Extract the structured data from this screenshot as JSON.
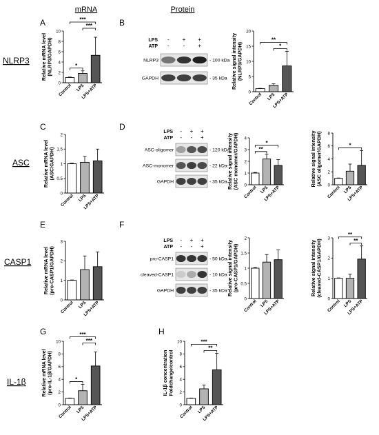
{
  "column_headers": {
    "mrna": "mRNA",
    "protein": "Protein"
  },
  "row_labels": {
    "nlrp3": "NLRP3",
    "asc": "ASC",
    "casp1": "CASP1",
    "il1b": "IL-1β"
  },
  "panel_letters": {
    "A": "A",
    "B": "B",
    "C": "C",
    "D": "D",
    "E": "E",
    "F": "F",
    "G": "G",
    "H": "H"
  },
  "colors": {
    "control": "#ffffff",
    "lps": "#b3b3b3",
    "lps_atp": "#555555",
    "axis": "#000000"
  },
  "blot_B": {
    "treatments": [
      {
        "name": "LPS",
        "signs": [
          "-",
          "+",
          "+"
        ]
      },
      {
        "name": "ATP",
        "signs": [
          "-",
          "-",
          "+"
        ]
      }
    ],
    "bands": [
      {
        "name": "NLRP3",
        "size": "- 100 kDa",
        "intensity": [
          0.55,
          0.85,
          0.95
        ]
      },
      {
        "name": "GAPDH",
        "size": "- 35 kDa",
        "intensity": [
          0.8,
          0.8,
          0.8
        ]
      }
    ]
  },
  "blot_D": {
    "treatments": [
      {
        "name": "LPS",
        "signs": [
          "-",
          "+",
          "+"
        ]
      },
      {
        "name": "ATP",
        "signs": [
          "-",
          "-",
          "+"
        ]
      }
    ],
    "bands": [
      {
        "name": "ASC-oligomer",
        "size": "- 120 kDa",
        "intensity": [
          0.35,
          0.7,
          0.75
        ]
      },
      {
        "name": "ASC-monomer",
        "size": "- 22 kDa",
        "intensity": [
          0.7,
          0.8,
          0.75
        ]
      },
      {
        "name": "GAPDH",
        "size": "- 35 kDa",
        "intensity": [
          0.8,
          0.8,
          0.8
        ]
      }
    ]
  },
  "blot_F": {
    "treatments": [
      {
        "name": "LPS",
        "signs": [
          "-",
          "+",
          "+"
        ]
      },
      {
        "name": "ATP",
        "signs": [
          "-",
          "-",
          "+"
        ]
      }
    ],
    "bands": [
      {
        "name": "pro-CASP1",
        "size": "- 50 kDa",
        "intensity": [
          0.85,
          0.85,
          0.85
        ]
      },
      {
        "name": "cleaved-CASP1",
        "size": "- 10 kDa",
        "intensity": [
          0.15,
          0.3,
          0.85
        ]
      },
      {
        "name": "GAPDH",
        "size": "- 35 kDa",
        "intensity": [
          0.8,
          0.8,
          0.8
        ]
      }
    ]
  },
  "chart_data": [
    {
      "id": "A",
      "type": "bar",
      "categories": [
        "Control",
        "LPS",
        "LPS+ATP"
      ],
      "values": [
        1,
        1.8,
        5.3
      ],
      "errors": [
        0.1,
        0.5,
        3.5
      ],
      "ylabel": [
        "Relative mRNA level",
        "(NLRP3/GAPDH)"
      ],
      "ylim": [
        0,
        10
      ],
      "yticks": [
        0,
        2,
        4,
        6,
        8,
        10
      ],
      "significance": [
        {
          "from": 0,
          "to": 1,
          "label": "*"
        },
        {
          "from": 1,
          "to": 2,
          "label": "***"
        },
        {
          "from": 0,
          "to": 2,
          "label": "***"
        }
      ]
    },
    {
      "id": "B",
      "type": "bar",
      "categories": [
        "Control",
        "LPS",
        "LPS+ATP"
      ],
      "values": [
        1,
        2.1,
        8.5
      ],
      "errors": [
        0.1,
        0.5,
        4.8
      ],
      "ylabel": [
        "Relative signal intensity",
        "(NLRP3/GAPDH)"
      ],
      "ylim": [
        0,
        20
      ],
      "yticks": [
        0,
        5,
        10,
        15,
        20
      ],
      "significance": [
        {
          "from": 1,
          "to": 2,
          "label": "*"
        },
        {
          "from": 0,
          "to": 2,
          "label": "**"
        }
      ]
    },
    {
      "id": "C",
      "type": "bar",
      "categories": [
        "Control",
        "LPS",
        "LPS+ATP"
      ],
      "values": [
        1,
        1.05,
        1.1
      ],
      "errors": [
        0.02,
        0.2,
        0.4
      ],
      "ylabel": [
        "Relative mRNA level",
        "(ASC/GAPDH)"
      ],
      "ylim": [
        0,
        2.0
      ],
      "yticks": [
        0.0,
        0.5,
        1.0,
        1.5,
        2.0
      ],
      "significance": []
    },
    {
      "id": "D1",
      "type": "bar",
      "categories": [
        "Control",
        "LPS",
        "LPS+ATP"
      ],
      "values": [
        1,
        2.2,
        1.65
      ],
      "errors": [
        0.05,
        0.4,
        0.5
      ],
      "ylabel": [
        "Relative signal intensity",
        "(ASC monomer/GAPDH)"
      ],
      "ylim": [
        0,
        4
      ],
      "yticks": [
        0,
        1,
        2,
        3,
        4
      ],
      "significance": [
        {
          "from": 0,
          "to": 1,
          "label": "**"
        },
        {
          "from": 0,
          "to": 2,
          "label": "*"
        }
      ]
    },
    {
      "id": "D2",
      "type": "bar",
      "categories": [
        "Control",
        "LPS",
        "LPS+ATP"
      ],
      "values": [
        1,
        2.1,
        3.0
      ],
      "errors": [
        0.05,
        1.1,
        2.3
      ],
      "ylabel": [
        "Relative signal intensity",
        "(ASC oligomer/GAPDH)"
      ],
      "ylim": [
        0,
        8
      ],
      "yticks": [
        0,
        2,
        4,
        6,
        8
      ],
      "significance": [
        {
          "from": 0,
          "to": 2,
          "label": "*"
        }
      ]
    },
    {
      "id": "E",
      "type": "bar",
      "categories": [
        "Control",
        "LPS",
        "LPS+ATP"
      ],
      "values": [
        1,
        1.55,
        1.7
      ],
      "errors": [
        0.02,
        0.7,
        0.75
      ],
      "ylabel": [
        "Relative mRNA level",
        "(pro-CASP1/GAPDH)"
      ],
      "ylim": [
        0,
        3
      ],
      "yticks": [
        0,
        1,
        2,
        3
      ],
      "significance": []
    },
    {
      "id": "F1",
      "type": "bar",
      "categories": [
        "Control",
        "LPS",
        "LPS+ATP"
      ],
      "values": [
        1,
        1.2,
        1.28
      ],
      "errors": [
        0.02,
        0.25,
        0.32
      ],
      "ylabel": [
        "Relative signal intensity",
        "(pro-CASP1/GAPDH)"
      ],
      "ylim": [
        0,
        2.0
      ],
      "yticks": [
        0.0,
        0.5,
        1.0,
        1.5,
        2.0
      ],
      "significance": []
    },
    {
      "id": "F2",
      "type": "bar",
      "categories": [
        "Control",
        "LPS",
        "LPS+ATP"
      ],
      "values": [
        1,
        1,
        1.95
      ],
      "errors": [
        0.02,
        0.2,
        0.65
      ],
      "ylabel": [
        "Relative signal intensity",
        "(cleaved-CASP1/GAPDH)"
      ],
      "ylim": [
        0,
        3
      ],
      "yticks": [
        0,
        1,
        2,
        3
      ],
      "significance": [
        {
          "from": 1,
          "to": 2,
          "label": "**"
        },
        {
          "from": 0,
          "to": 2,
          "label": "**"
        }
      ]
    },
    {
      "id": "G",
      "type": "bar",
      "categories": [
        "Control",
        "LPS",
        "LPS+ATP"
      ],
      "values": [
        1,
        2.2,
        6.1
      ],
      "errors": [
        0.05,
        1.0,
        2.2
      ],
      "ylabel": [
        "Relative mRNA level",
        "(pro-IL-1β/GAPDH)"
      ],
      "ylim": [
        0,
        10
      ],
      "yticks": [
        0,
        2,
        4,
        6,
        8,
        10
      ],
      "significance": [
        {
          "from": 0,
          "to": 1,
          "label": "*"
        },
        {
          "from": 1,
          "to": 2,
          "label": "***"
        },
        {
          "from": 0,
          "to": 2,
          "label": "***"
        }
      ]
    },
    {
      "id": "H",
      "type": "bar",
      "categories": [
        "Control",
        "LPS",
        "LPS+ATP"
      ],
      "values": [
        1,
        2.5,
        5.5
      ],
      "errors": [
        0.05,
        0.6,
        2.6
      ],
      "ylabel": [
        "IL-1β concentration",
        "Foldchange/control"
      ],
      "ylim": [
        0,
        10
      ],
      "yticks": [
        0,
        2,
        4,
        6,
        8,
        10
      ],
      "significance": [
        {
          "from": 1,
          "to": 2,
          "label": "**"
        },
        {
          "from": 0,
          "to": 2,
          "label": "***"
        }
      ]
    }
  ]
}
